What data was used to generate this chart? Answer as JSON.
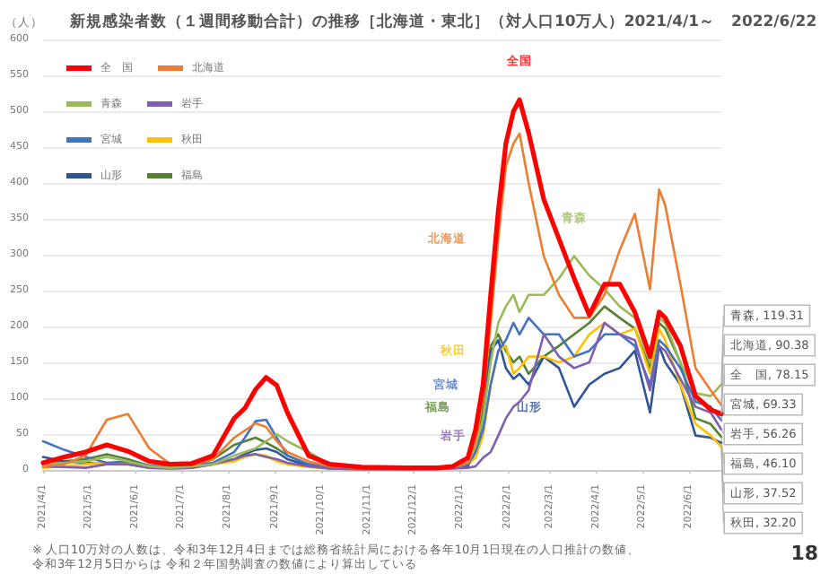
{
  "chart_data": {
    "type": "line",
    "title": "新規感染者数（１週間移動合計）の推移［北海道・東北］（対人口10万人）2021/4/1～　2022/6/22",
    "ylabel": "（人）",
    "x": [
      "2021-04-01",
      "2021-04-15",
      "2021-04-29",
      "2021-05-13",
      "2021-05-27",
      "2021-06-10",
      "2021-06-24",
      "2021-07-08",
      "2021-07-22",
      "2021-08-05",
      "2021-08-12",
      "2021-08-19",
      "2021-08-26",
      "2021-09-02",
      "2021-09-09",
      "2021-09-23",
      "2021-10-07",
      "2021-10-28",
      "2021-11-27",
      "2021-12-17",
      "2021-12-27",
      "2022-01-06",
      "2022-01-11",
      "2022-01-16",
      "2022-01-21",
      "2022-01-26",
      "2022-01-31",
      "2022-02-05",
      "2022-02-09",
      "2022-02-15",
      "2022-02-25",
      "2022-03-07",
      "2022-03-17",
      "2022-03-27",
      "2022-04-06",
      "2022-04-16",
      "2022-04-26",
      "2022-05-06",
      "2022-05-12",
      "2022-05-16",
      "2022-05-26",
      "2022-06-05",
      "2022-06-15",
      "2022-06-22"
    ],
    "xlim": [
      "2021-04-01",
      "2022-06-22"
    ],
    "xticks": [
      {
        "value": "2021-04-01",
        "label": "2021/4/1"
      },
      {
        "value": "2021-05-01",
        "label": "2021/5/1"
      },
      {
        "value": "2021-06-01",
        "label": "2021/6/1"
      },
      {
        "value": "2021-07-01",
        "label": "2021/7/1"
      },
      {
        "value": "2021-08-01",
        "label": "2021/8/1"
      },
      {
        "value": "2021-09-01",
        "label": "2021/9/1"
      },
      {
        "value": "2021-10-01",
        "label": "2021/10/1"
      },
      {
        "value": "2021-11-01",
        "label": "2021/11/1"
      },
      {
        "value": "2021-12-01",
        "label": "2021/12/1"
      },
      {
        "value": "2022-01-01",
        "label": "2022/1/1"
      },
      {
        "value": "2022-02-01",
        "label": "2022/2/1"
      },
      {
        "value": "2022-03-01",
        "label": "2022/3/1"
      },
      {
        "value": "2022-04-01",
        "label": "2022/4/1"
      },
      {
        "value": "2022-05-01",
        "label": "2022/5/1"
      },
      {
        "value": "2022-06-01",
        "label": "2022/6/1"
      }
    ],
    "ylim": [
      0,
      600
    ],
    "yticks": [
      0,
      50,
      100,
      150,
      200,
      250,
      300,
      350,
      400,
      450,
      500,
      550,
      600
    ],
    "grid": "y",
    "legend": "top left",
    "series": [
      {
        "name": "全　国",
        "color": "#ff0000",
        "values": [
          10,
          18,
          25,
          35,
          26,
          12,
          8,
          9,
          20,
          72,
          86,
          112,
          129,
          118,
          80,
          20,
          8,
          4,
          3,
          3,
          5,
          17,
          56,
          119,
          244,
          361,
          455,
          500,
          516,
          470,
          377,
          322,
          267,
          216,
          259,
          259,
          220,
          158,
          220,
          212,
          173,
          103,
          84,
          78.15
        ],
        "value_labels": [
          null,
          null,
          null,
          null,
          null,
          null,
          null,
          null,
          null,
          null,
          null,
          null,
          null,
          null,
          null,
          null,
          null,
          null,
          null,
          null,
          null,
          null,
          null,
          null,
          null,
          null,
          null,
          null,
          null,
          null,
          null,
          null,
          null,
          null,
          null,
          null,
          null,
          null,
          null,
          null,
          null,
          null,
          null,
          "全　国, 78.15"
        ]
      },
      {
        "name": "北海道",
        "color": "#ed7d31",
        "values": [
          5,
          8,
          20,
          70,
          78,
          30,
          8,
          7,
          15,
          45,
          55,
          65,
          60,
          40,
          25,
          12,
          5,
          3,
          3,
          3,
          4,
          10,
          40,
          100,
          205,
          322,
          423,
          455,
          469,
          400,
          298,
          244,
          212,
          212,
          244,
          306,
          357,
          252,
          391,
          369,
          259,
          142,
          111,
          90.38
        ],
        "value_labels": [
          null,
          null,
          null,
          null,
          null,
          null,
          null,
          null,
          null,
          null,
          null,
          null,
          null,
          null,
          null,
          null,
          null,
          null,
          null,
          null,
          null,
          null,
          null,
          null,
          null,
          null,
          null,
          null,
          null,
          null,
          null,
          null,
          null,
          null,
          null,
          null,
          null,
          null,
          null,
          null,
          null,
          null,
          null,
          "北海道, 90.38"
        ]
      },
      {
        "name": "青森",
        "color": "#9bbb59",
        "values": [
          8,
          10,
          12,
          18,
          12,
          5,
          3,
          5,
          8,
          20,
          25,
          30,
          40,
          50,
          40,
          25,
          8,
          4,
          2,
          3,
          4,
          10,
          33,
          72,
          150,
          205,
          228,
          244,
          220,
          244,
          244,
          267,
          298,
          271,
          252,
          228,
          212,
          150,
          212,
          205,
          150,
          107,
          103,
          119.31
        ],
        "value_labels": [
          null,
          null,
          null,
          null,
          null,
          null,
          null,
          null,
          null,
          null,
          null,
          null,
          null,
          null,
          null,
          null,
          null,
          null,
          null,
          null,
          null,
          null,
          null,
          null,
          null,
          null,
          null,
          null,
          null,
          null,
          null,
          null,
          null,
          null,
          null,
          null,
          null,
          null,
          null,
          null,
          null,
          null,
          null,
          "青森, 119.31"
        ]
      },
      {
        "name": "岩手",
        "color": "#7f5fb0",
        "values": [
          5,
          4,
          3,
          8,
          8,
          3,
          2,
          3,
          8,
          15,
          20,
          22,
          18,
          15,
          10,
          5,
          2,
          1,
          1,
          1,
          2,
          3,
          5,
          17,
          25,
          48,
          72,
          88,
          95,
          111,
          189,
          158,
          142,
          150,
          205,
          189,
          181,
          111,
          173,
          166,
          127,
          88,
          80,
          56.26
        ],
        "value_labels": [
          null,
          null,
          null,
          null,
          null,
          null,
          null,
          null,
          null,
          null,
          null,
          null,
          null,
          null,
          null,
          null,
          null,
          null,
          null,
          null,
          null,
          null,
          null,
          null,
          null,
          null,
          null,
          null,
          null,
          null,
          null,
          null,
          null,
          null,
          null,
          null,
          null,
          null,
          null,
          null,
          null,
          null,
          null,
          "岩手, 56.26"
        ]
      },
      {
        "name": "宮城",
        "color": "#4472c4",
        "values": [
          40,
          28,
          18,
          10,
          12,
          6,
          4,
          6,
          10,
          25,
          45,
          68,
          70,
          45,
          20,
          8,
          3,
          2,
          2,
          3,
          4,
          8,
          25,
          56,
          119,
          166,
          181,
          205,
          189,
          212,
          189,
          189,
          158,
          166,
          189,
          189,
          173,
          119,
          181,
          173,
          142,
          95,
          88,
          69.33
        ],
        "value_labels": [
          null,
          null,
          null,
          null,
          null,
          null,
          null,
          null,
          null,
          null,
          null,
          null,
          null,
          null,
          null,
          null,
          null,
          null,
          null,
          null,
          null,
          null,
          null,
          null,
          null,
          null,
          null,
          null,
          null,
          null,
          null,
          null,
          null,
          null,
          null,
          null,
          null,
          null,
          null,
          null,
          null,
          null,
          null,
          "宮城, 69.33"
        ]
      },
      {
        "name": "秋田",
        "color": "#ffc000",
        "values": [
          3,
          5,
          8,
          10,
          8,
          3,
          2,
          3,
          8,
          12,
          18,
          22,
          20,
          12,
          8,
          4,
          2,
          1,
          1,
          2,
          3,
          8,
          17,
          48,
          119,
          166,
          173,
          134,
          142,
          158,
          158,
          150,
          158,
          189,
          205,
          189,
          197,
          134,
          197,
          181,
          119,
          64,
          48,
          32.2
        ],
        "value_labels": [
          null,
          null,
          null,
          null,
          null,
          null,
          null,
          null,
          null,
          null,
          null,
          null,
          null,
          null,
          null,
          null,
          null,
          null,
          null,
          null,
          null,
          null,
          null,
          null,
          null,
          null,
          null,
          null,
          null,
          null,
          null,
          null,
          null,
          null,
          null,
          null,
          null,
          null,
          null,
          null,
          null,
          null,
          null,
          "秋田, 32.20"
        ]
      },
      {
        "name": "山形",
        "color": "#2f5597",
        "values": [
          18,
          12,
          10,
          8,
          8,
          4,
          3,
          4,
          8,
          15,
          22,
          28,
          30,
          25,
          15,
          6,
          2,
          1,
          1,
          2,
          3,
          5,
          25,
          72,
          166,
          181,
          142,
          127,
          134,
          119,
          158,
          142,
          88,
          119,
          134,
          142,
          166,
          80,
          173,
          150,
          119,
          48,
          45,
          37.52
        ],
        "value_labels": [
          null,
          null,
          null,
          null,
          null,
          null,
          null,
          null,
          null,
          null,
          null,
          null,
          null,
          null,
          null,
          null,
          null,
          null,
          null,
          null,
          null,
          null,
          null,
          null,
          null,
          null,
          null,
          null,
          null,
          null,
          null,
          null,
          null,
          null,
          null,
          null,
          null,
          null,
          null,
          null,
          null,
          null,
          null,
          "山形, 37.52"
        ]
      },
      {
        "name": "福島",
        "color": "#548235",
        "values": [
          10,
          12,
          15,
          22,
          15,
          6,
          4,
          5,
          15,
          35,
          40,
          45,
          38,
          30,
          20,
          8,
          3,
          2,
          2,
          3,
          4,
          8,
          33,
          88,
          173,
          189,
          166,
          150,
          158,
          134,
          158,
          173,
          189,
          205,
          228,
          212,
          197,
          142,
          205,
          197,
          150,
          72,
          64,
          46.1
        ],
        "value_labels": [
          null,
          null,
          null,
          null,
          null,
          null,
          null,
          null,
          null,
          null,
          null,
          null,
          null,
          null,
          null,
          null,
          null,
          null,
          null,
          null,
          null,
          null,
          null,
          null,
          null,
          null,
          null,
          null,
          null,
          null,
          null,
          null,
          null,
          null,
          null,
          null,
          null,
          null,
          null,
          null,
          null,
          null,
          null,
          "福島, 46.10"
        ]
      }
    ],
    "annotations": [
      {
        "text": "全国",
        "x": "2022-02-09",
        "y": 516
      },
      {
        "text": "北海道",
        "x": "2022-01-26",
        "y": 322
      },
      {
        "text": "青森",
        "x": "2022-03-17",
        "y": 298
      },
      {
        "text": "岩手",
        "x": "2022-01-26",
        "y": 48
      },
      {
        "text": "宮城",
        "x": "2022-01-21",
        "y": 119
      },
      {
        "text": "秋田",
        "x": "2022-01-26",
        "y": 166
      },
      {
        "text": "山形",
        "x": "2022-03-17",
        "y": 88
      },
      {
        "text": "福島",
        "x": "2022-01-16",
        "y": 88
      },
      "※ 人口10万対の人数は、令和3年12月4日までは総務省統計局における各年10月1日現在の人口推計の数値、",
      "令和3年12月5日からは 令和２年国勢調査の数値により算出している",
      "18"
    ]
  }
}
